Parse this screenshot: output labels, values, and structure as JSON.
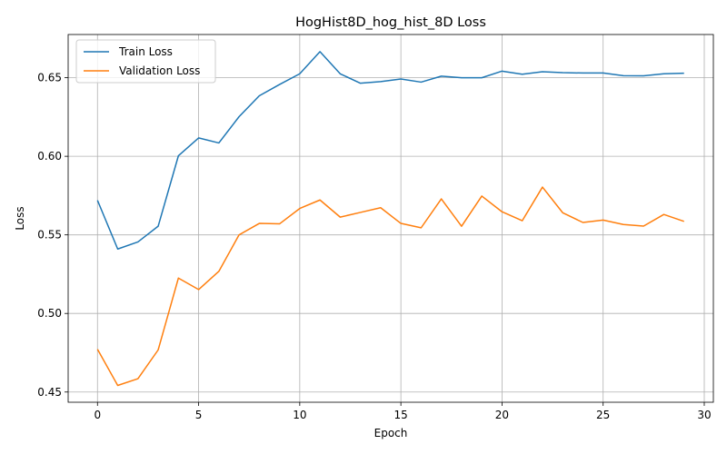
{
  "chart_data": {
    "type": "line",
    "title": "HogHist8D_hog_hist_8D Loss",
    "xlabel": "Epoch",
    "ylabel": "Loss",
    "xlim": [
      -1.45,
      30.45
    ],
    "ylim": [
      0.4435,
      0.6775
    ],
    "xticks": [
      "0",
      "5",
      "10",
      "15",
      "20",
      "25",
      "30"
    ],
    "yticks": [
      "0.45",
      "0.50",
      "0.55",
      "0.60",
      "0.65"
    ],
    "grid": true,
    "legend_position": "top-left",
    "x": [
      0,
      1,
      2,
      3,
      4,
      5,
      6,
      7,
      8,
      9,
      10,
      11,
      12,
      13,
      14,
      15,
      16,
      17,
      18,
      19,
      20,
      21,
      22,
      23,
      24,
      25,
      26,
      27,
      28,
      29
    ],
    "series": [
      {
        "name": "Train Loss",
        "color": "#1f77b4",
        "values": [
          0.572,
          0.541,
          0.5455,
          0.5555,
          0.6003,
          0.6117,
          0.6085,
          0.6252,
          0.6385,
          0.6457,
          0.6525,
          0.6666,
          0.6525,
          0.6465,
          0.6475,
          0.6492,
          0.6472,
          0.651,
          0.65,
          0.65,
          0.6542,
          0.6522,
          0.6538,
          0.6532,
          0.653,
          0.653,
          0.6513,
          0.6512,
          0.6525,
          0.6529
        ]
      },
      {
        "name": "Validation Loss",
        "color": "#ff7f0e",
        "values": [
          0.4772,
          0.4542,
          0.4585,
          0.4768,
          0.5225,
          0.5152,
          0.5268,
          0.55,
          0.5573,
          0.557,
          0.5668,
          0.5722,
          0.5613,
          0.5643,
          0.5673,
          0.5573,
          0.5545,
          0.5729,
          0.5555,
          0.5747,
          0.5647,
          0.559,
          0.5804,
          0.5641,
          0.5579,
          0.5594,
          0.5566,
          0.5556,
          0.563,
          0.5586
        ]
      }
    ]
  }
}
